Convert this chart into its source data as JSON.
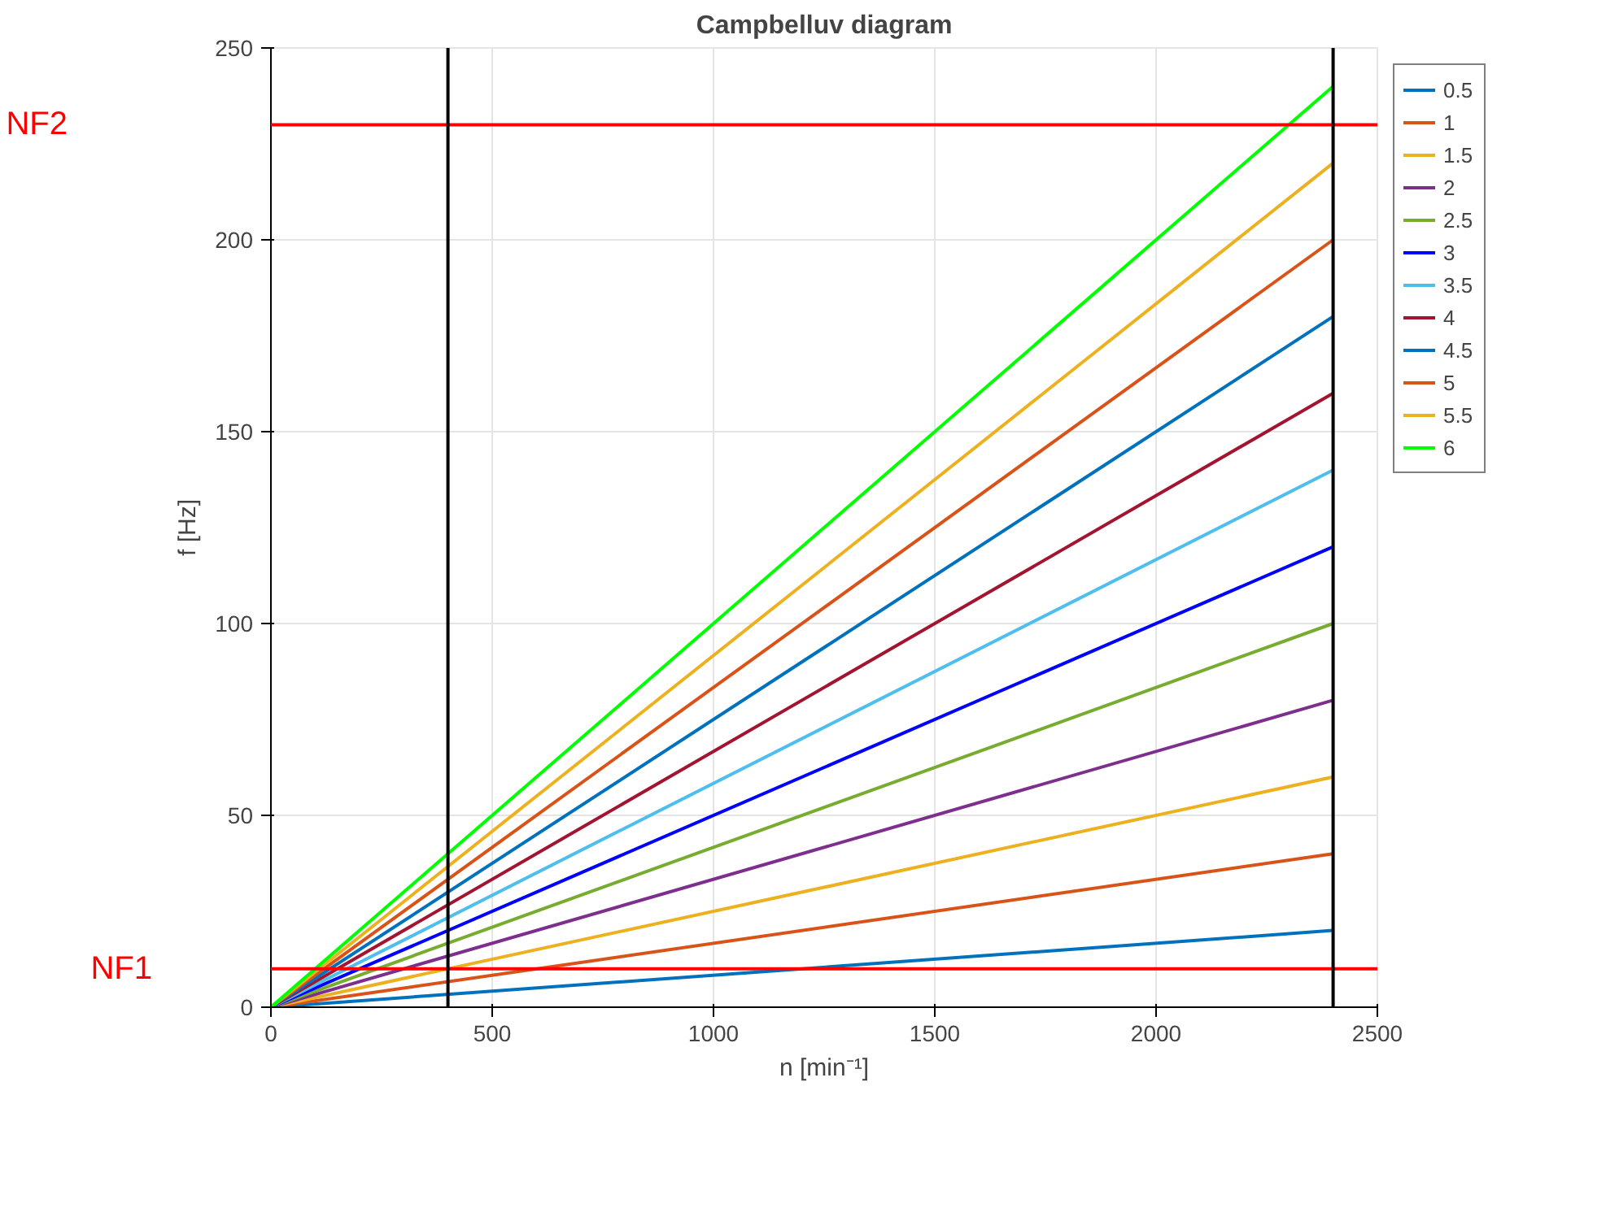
{
  "chart_data": {
    "type": "line",
    "title": "Campbelluv diagram",
    "xlabel": "n [min⁻¹]",
    "ylabel": "f [Hz]",
    "x": [
      0,
      2400
    ],
    "series": [
      {
        "name": "0.5",
        "color": "#0072bd",
        "values": [
          0,
          20
        ]
      },
      {
        "name": "1",
        "color": "#d95319",
        "values": [
          0,
          40
        ]
      },
      {
        "name": "1.5",
        "color": "#edb120",
        "values": [
          0,
          60
        ]
      },
      {
        "name": "2",
        "color": "#7e2f8e",
        "values": [
          0,
          80
        ]
      },
      {
        "name": "2.5",
        "color": "#77ac30",
        "values": [
          0,
          100
        ]
      },
      {
        "name": "3",
        "color": "#0000ff",
        "values": [
          0,
          120
        ]
      },
      {
        "name": "3.5",
        "color": "#4dbeee",
        "values": [
          0,
          140
        ]
      },
      {
        "name": "4",
        "color": "#a2142f",
        "values": [
          0,
          160
        ]
      },
      {
        "name": "4.5",
        "color": "#0072bd",
        "values": [
          0,
          180
        ]
      },
      {
        "name": "5",
        "color": "#d95319",
        "values": [
          0,
          200
        ]
      },
      {
        "name": "5.5",
        "color": "#edb120",
        "values": [
          0,
          220
        ]
      },
      {
        "name": "6",
        "color": "#00ff00",
        "values": [
          0,
          240
        ]
      }
    ],
    "xlim": [
      0,
      2500
    ],
    "xticks": [
      0,
      500,
      1000,
      1500,
      2000,
      2500
    ],
    "ylim": [
      0,
      250
    ],
    "yticks": [
      0,
      50,
      100,
      150,
      200,
      250
    ],
    "ref_lines": [
      {
        "axis": "y",
        "value": 10,
        "label": "NF1",
        "color": "#ff0000"
      },
      {
        "axis": "y",
        "value": 230,
        "label": "NF2",
        "color": "#ff0000"
      },
      {
        "axis": "x",
        "value": 400,
        "color": "#000000"
      },
      {
        "axis": "x",
        "value": 2400,
        "color": "#000000"
      }
    ],
    "grid": true,
    "legend": "top right",
    "line_style": "solid",
    "marker": "none"
  }
}
